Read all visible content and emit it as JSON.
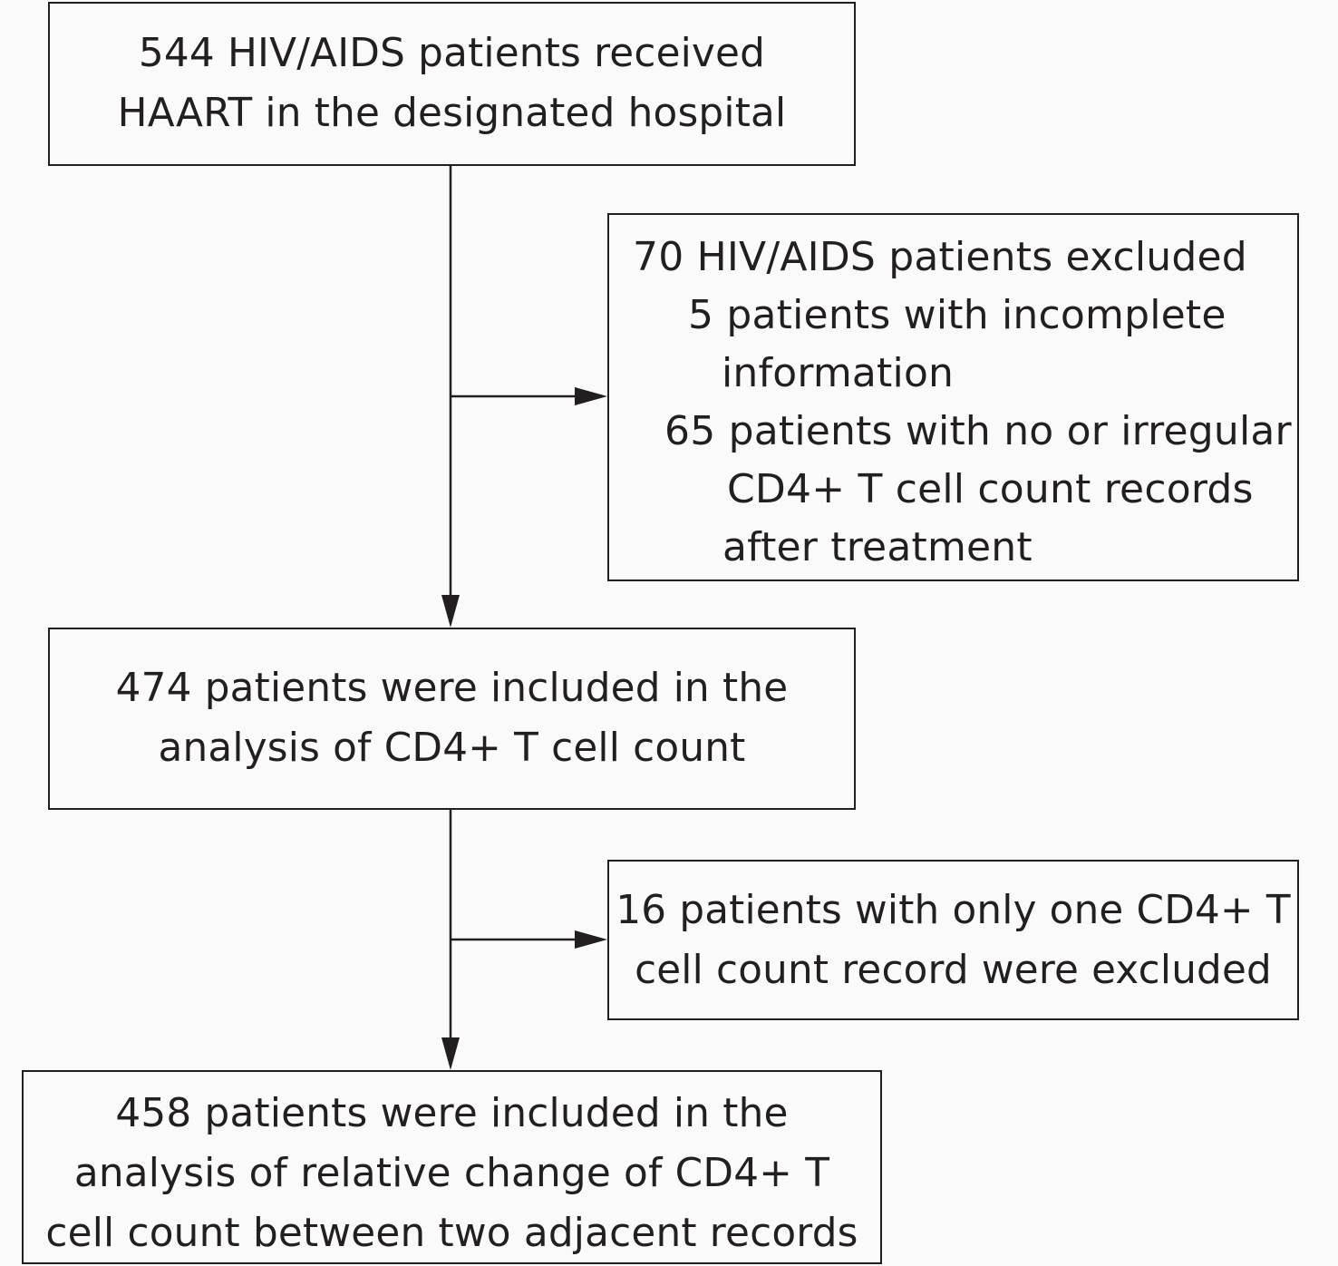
{
  "flowchart": {
    "start": {
      "lines": [
        "544 HIV/AIDS patients received",
        "HAART in the designated hospital"
      ]
    },
    "exclusion_1": {
      "lines": [
        "70 HIV/AIDS patients excluded",
        "5 patients with incomplete",
        "information",
        "65 patients with no or irregular",
        "CD4+ T  cell count records",
        "after treatment"
      ]
    },
    "included_1": {
      "lines": [
        "474 patients were included in the",
        "analysis of CD4+ T cell count"
      ]
    },
    "exclusion_2": {
      "lines": [
        "16 patients with only one CD4+ T",
        "cell count record were excluded"
      ]
    },
    "included_2": {
      "lines": [
        "458 patients were included in the",
        "analysis of  relative change of CD4+ T",
        "cell count between two adjacent records"
      ]
    }
  },
  "colors": {
    "stroke": "#231f20",
    "text": "#231f20",
    "background": "#fafafa"
  }
}
